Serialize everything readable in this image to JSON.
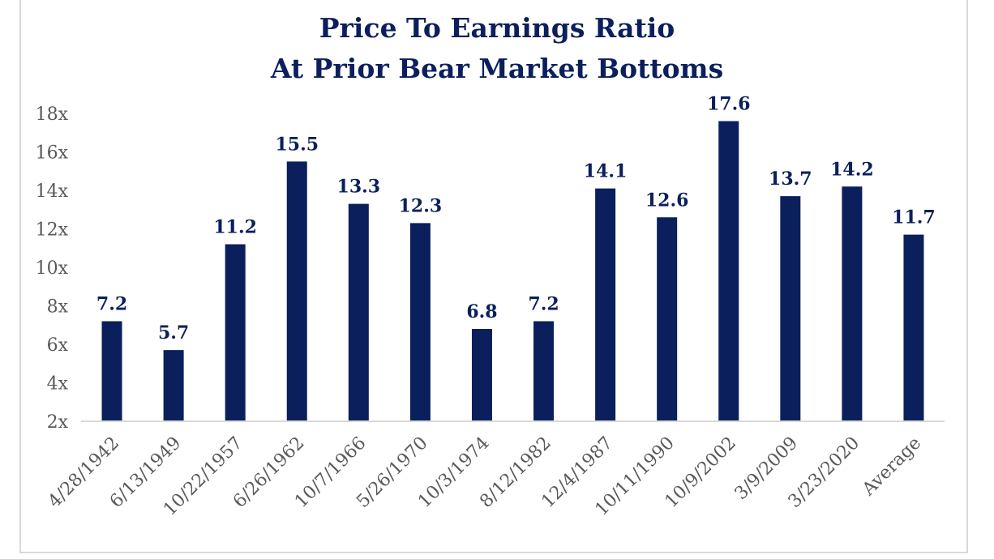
{
  "chart_data": {
    "type": "bar",
    "title": "Price To Earnings Ratio",
    "subtitle": "At Prior Bear Market Bottoms",
    "categories": [
      "4/28/1942",
      "6/13/1949",
      "10/22/1957",
      "6/26/1962",
      "10/7/1966",
      "5/26/1970",
      "10/3/1974",
      "8/12/1982",
      "12/4/1987",
      "10/11/1990",
      "10/9/2002",
      "3/9/2009",
      "3/23/2020",
      "Average"
    ],
    "values": [
      7.2,
      5.7,
      11.2,
      15.5,
      13.3,
      12.3,
      6.8,
      7.2,
      14.1,
      12.6,
      17.6,
      13.7,
      14.2,
      11.7
    ],
    "data_labels": [
      "7.2",
      "5.7",
      "11.2",
      "15.5",
      "13.3",
      "12.3",
      "6.8",
      "7.2",
      "14.1",
      "12.6",
      "17.6",
      "13.7",
      "14.2",
      "11.7"
    ],
    "y_ticks": [
      2,
      4,
      6,
      8,
      10,
      12,
      14,
      16,
      18
    ],
    "y_tick_labels": [
      "2x",
      "4x",
      "6x",
      "8x",
      "10x",
      "12x",
      "14x",
      "16x",
      "18x"
    ],
    "ylim": [
      2,
      18
    ],
    "xlabel": "",
    "ylabel": "",
    "grid": false,
    "legend": "none",
    "bar_color": "#0b1f5c",
    "axis_color": "#d9d9d9"
  }
}
